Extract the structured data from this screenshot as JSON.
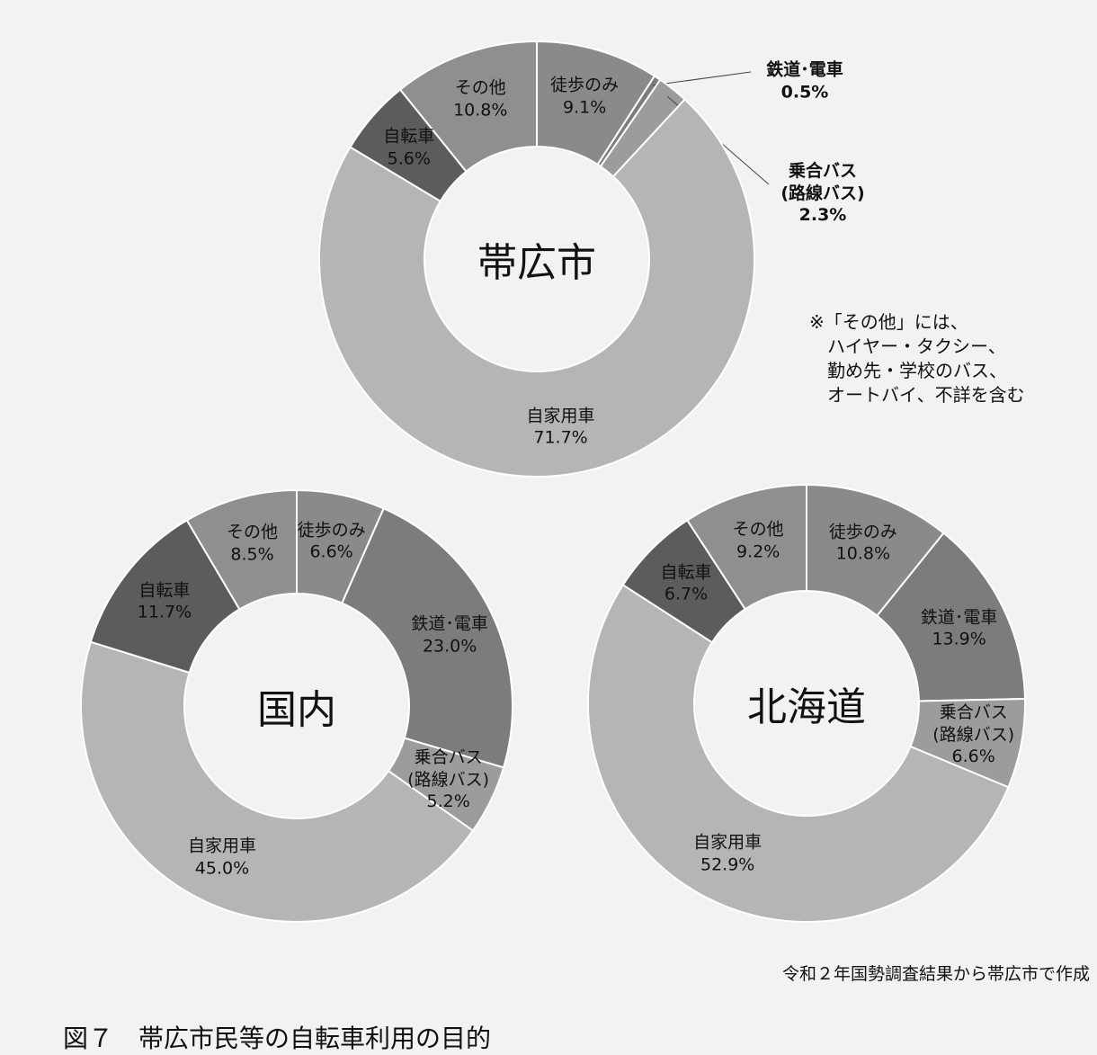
{
  "chart_data": [
    {
      "type": "donut",
      "center_label": "帯広市",
      "categories": [
        "徒歩のみ",
        "鉄道･電車",
        "乗合バス\n(路線バス)",
        "自家用車",
        "自転車",
        "その他"
      ],
      "values": [
        9.1,
        0.5,
        2.3,
        71.7,
        5.6,
        10.8
      ],
      "value_labels": [
        "9.1%",
        "0.5%",
        "2.3%",
        "71.7%",
        "5.6%",
        "10.8%"
      ],
      "colors": [
        "#8a8a8a",
        "#7c7c7c",
        "#9c9c9c",
        "#b5b5b5",
        "#5c5c5c",
        "#8f8f8f"
      ]
    },
    {
      "type": "donut",
      "center_label": "国内",
      "categories": [
        "徒歩のみ",
        "鉄道･電車",
        "乗合バス\n(路線バス)",
        "自家用車",
        "自転車",
        "その他"
      ],
      "values": [
        6.6,
        23.0,
        5.2,
        45.0,
        11.7,
        8.5
      ],
      "value_labels": [
        "6.6%",
        "23.0%",
        "5.2%",
        "45.0%",
        "11.7%",
        "8.5%"
      ],
      "colors": [
        "#8a8a8a",
        "#7c7c7c",
        "#9c9c9c",
        "#b5b5b5",
        "#5c5c5c",
        "#8f8f8f"
      ]
    },
    {
      "type": "donut",
      "center_label": "北海道",
      "categories": [
        "徒歩のみ",
        "鉄道･電車",
        "乗合バス\n(路線バス)",
        "自家用車",
        "自転車",
        "その他"
      ],
      "values": [
        10.8,
        13.9,
        6.6,
        52.9,
        6.7,
        9.2
      ],
      "value_labels": [
        "10.8%",
        "13.9%",
        "6.6%",
        "52.9%",
        "6.7%",
        "9.2%"
      ],
      "colors": [
        "#8a8a8a",
        "#7c7c7c",
        "#9c9c9c",
        "#b5b5b5",
        "#5c5c5c",
        "#8f8f8f"
      ]
    }
  ],
  "note": "※「その他」には、\n　ハイヤー・タクシー、\n　勤め先・学校のバス、\n　オートバイ、不詳を含む",
  "source": "令和２年国勢調査結果から帯広市で作成",
  "figure_title": "図７　帯広市民等の自転車利用の目的"
}
